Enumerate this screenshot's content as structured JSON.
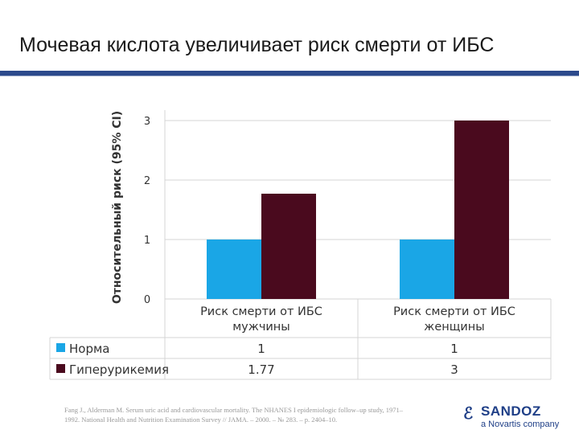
{
  "page": {
    "title": "Мочевая кислота увеличивает риск смерти от ИБС",
    "footnote": "Fang J., Alderman M. Serum uric acid and cardiovascular mortality. The NHANES I epidemiologic follow–up study, 1971–1992. National Health and Nutrition Examination Survey // JAMA. – 2000. – № 283. – p. 2404–10.",
    "logo": {
      "mark": "ℰ",
      "name": "SANDOZ",
      "tagline": "a Novartis company"
    }
  },
  "colors": {
    "norma": "#1aa6e6",
    "hyper": "#4a0a1e",
    "title_rule": "#2c4a8c"
  },
  "chart_data": {
    "type": "bar",
    "ylabel": "Относительный риск (95% CI)",
    "ylim": [
      0,
      3
    ],
    "yticks": [
      "0",
      "1",
      "2",
      "3"
    ],
    "grid": true,
    "categories": [
      [
        "Риск смерти от ИБС",
        "мужчины"
      ],
      [
        "Риск смерти от ИБС",
        "женщины"
      ]
    ],
    "series": [
      {
        "name": "Норма",
        "values": [
          1,
          1
        ],
        "labels": [
          "1",
          "1"
        ]
      },
      {
        "name": "Гиперурикемия",
        "values": [
          1.77,
          3
        ],
        "labels": [
          "1.77",
          "3"
        ]
      }
    ],
    "legend": "data-table"
  }
}
